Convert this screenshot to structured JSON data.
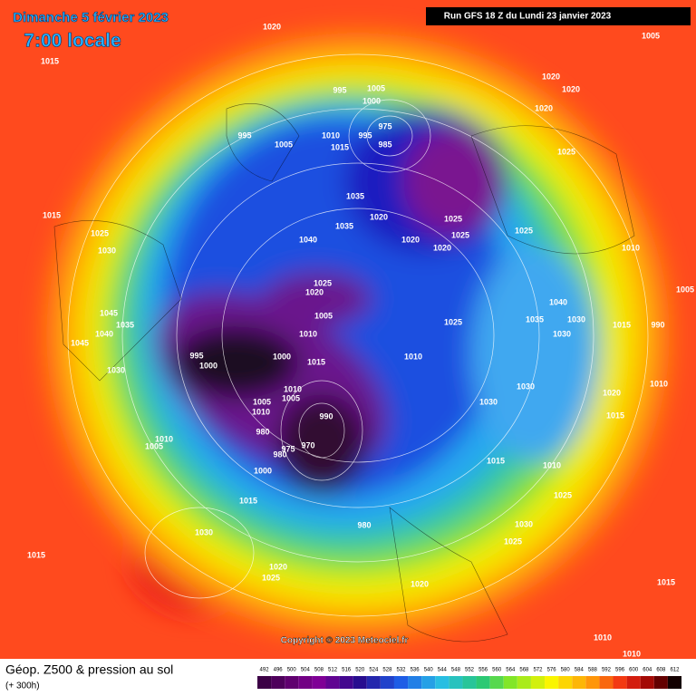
{
  "header": {
    "date": "Dimanche 5 février 2023",
    "time": "7:00 locale",
    "run": "Run GFS 18 Z du Lundi 23 janvier 2023"
  },
  "footer": {
    "title": "Géop. Z500 & pression au sol",
    "lead": "(+ 300h)",
    "copyright": "Copyright © 2023 Meteociel.fr"
  },
  "legend": {
    "values": [
      492,
      496,
      500,
      504,
      508,
      512,
      516,
      520,
      524,
      528,
      532,
      536,
      540,
      544,
      548,
      552,
      556,
      560,
      564,
      568,
      572,
      576,
      580,
      584,
      588,
      592,
      596,
      600,
      604,
      608,
      612
    ]
  },
  "pressure_labels": [
    1020,
    1005,
    1015,
    995,
    1005,
    1020,
    1020,
    1000,
    975,
    1020,
    995,
    1010,
    995,
    985,
    1005,
    1015,
    1025,
    1035,
    1015,
    1025,
    1020,
    1025,
    1035,
    1025,
    1020,
    1025,
    1040,
    1020,
    1030,
    1010,
    1025,
    1020,
    1040,
    1005,
    1045,
    1005,
    1035,
    1035,
    1030,
    1025,
    1015,
    990,
    1040,
    1010,
    1045,
    1030,
    995,
    1000,
    1010,
    1000,
    1015,
    1030,
    1030,
    1010,
    1010,
    1005,
    1020,
    1030,
    1005,
    1010,
    1015,
    990,
    980,
    975,
    970,
    1010,
    1005,
    980,
    1015,
    1010,
    1000,
    1025,
    1015,
    1030,
    980,
    1030,
    1025,
    1015,
    1020,
    1025,
    1020,
    1015,
    1010,
    1010
  ]
}
